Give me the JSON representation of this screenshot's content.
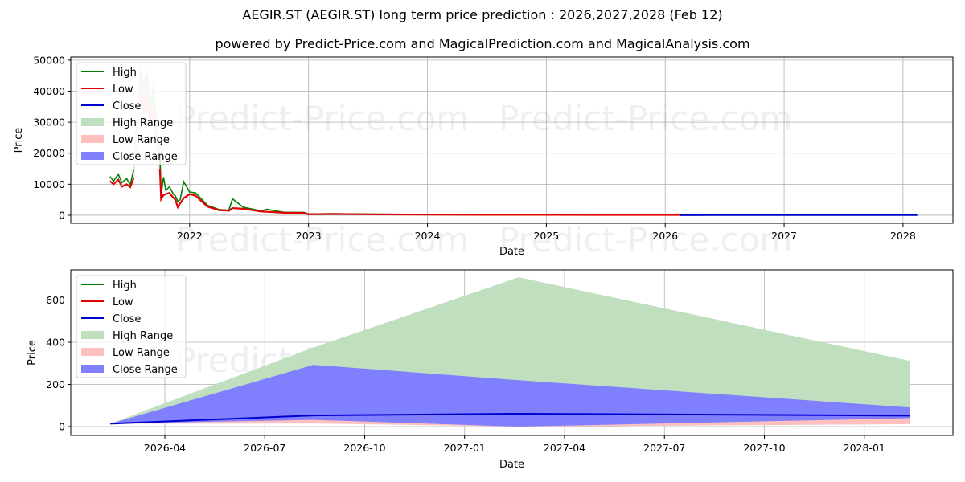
{
  "title": "AEGIR.ST (AEGIR.ST) long term price prediction : 2026,2027,2028 (Feb 12)",
  "subtitle": "powered by Predict-Price.com and MagicalPrediction.com and MagicalAnalysis.com",
  "watermark": "Predict-Price.com",
  "colors": {
    "high": "#008000",
    "low": "#e00000",
    "close": "#0000cc",
    "high_range": "#bfdfbf",
    "low_range": "#ffbfbf",
    "close_range": "#8080ff",
    "grid": "#b0b0b0"
  },
  "legend": [
    "High",
    "Low",
    "Close",
    "High Range",
    "Low Range",
    "Close Range"
  ],
  "chart_data": [
    {
      "type": "line",
      "title": "Historical and predicted price (long term)",
      "xlabel": "Date",
      "ylabel": "Price",
      "ylim": [
        -2600,
        51000
      ],
      "yticks": [
        0,
        10000,
        20000,
        30000,
        40000,
        50000
      ],
      "xticks": [
        "2022",
        "2023",
        "2024",
        "2025",
        "2026",
        "2027",
        "2028"
      ],
      "xlim": [
        2021.0,
        2028.42
      ],
      "grid": true,
      "legend_position": "upper left",
      "series": [
        {
          "name": "High",
          "x": [
            2021.33,
            2021.36,
            2021.4,
            2021.43,
            2021.47,
            2021.5,
            2021.53,
            2021.56,
            2021.58,
            2021.61,
            2021.64,
            2021.67,
            2021.7,
            2021.72,
            2021.75,
            2021.76,
            2021.78,
            2021.8,
            2021.83,
            2021.86,
            2021.88,
            2021.9,
            2021.92,
            2021.95,
            2022.0,
            2022.05,
            2022.1,
            2022.15,
            2022.25,
            2022.3,
            2022.33,
            2022.36,
            2022.45,
            2022.6,
            2022.65,
            2022.8,
            2022.96,
            2023.0,
            2023.2,
            2023.5,
            2024.0,
            2024.5,
            2025.0,
            2025.5,
            2026.12
          ],
          "values": [
            12500,
            11000,
            13200,
            10500,
            11800,
            9800,
            14800,
            36000,
            49000,
            43000,
            47000,
            38000,
            44000,
            33000,
            20000,
            6500,
            12300,
            8000,
            9200,
            7000,
            6200,
            4500,
            5000,
            10800,
            7500,
            7200,
            5200,
            3200,
            1800,
            1700,
            1600,
            5300,
            2600,
            1400,
            1900,
            900,
            900,
            400,
            500,
            350,
            250,
            200,
            180,
            160,
            150
          ]
        },
        {
          "name": "Low",
          "x": [
            2021.33,
            2021.36,
            2021.4,
            2021.43,
            2021.47,
            2021.5,
            2021.53,
            2021.56,
            2021.58,
            2021.61,
            2021.64,
            2021.67,
            2021.7,
            2021.72,
            2021.75,
            2021.76,
            2021.78,
            2021.8,
            2021.83,
            2021.86,
            2021.88,
            2021.9,
            2021.92,
            2021.95,
            2022.0,
            2022.05,
            2022.1,
            2022.15,
            2022.25,
            2022.3,
            2022.33,
            2022.36,
            2022.45,
            2022.6,
            2022.65,
            2022.8,
            2022.96,
            2023.0,
            2023.2,
            2023.5,
            2024.0,
            2024.5,
            2025.0,
            2025.5,
            2026.12
          ],
          "values": [
            11000,
            10000,
            11500,
            9200,
            10000,
            9000,
            12000,
            30000,
            43000,
            38000,
            41000,
            33000,
            35000,
            27000,
            15000,
            5200,
            6500,
            6800,
            7200,
            5800,
            5000,
            2600,
            3800,
            5500,
            6800,
            6300,
            4500,
            2800,
            1600,
            1550,
            1450,
            2300,
            2100,
            1200,
            1100,
            800,
            750,
            300,
            400,
            300,
            200,
            150,
            130,
            110,
            100
          ]
        },
        {
          "name": "Close (prediction)",
          "x": [
            2026.12,
            2026.6,
            2027.13,
            2027.6,
            2028.12
          ],
          "values": [
            14,
            53,
            61,
            57,
            52
          ]
        }
      ]
    },
    {
      "type": "area",
      "title": "Price prediction detail 2026-2028",
      "xlabel": "Date",
      "ylabel": "Price",
      "ylim": [
        -40,
        720
      ],
      "yticks": [
        0,
        200,
        400,
        600
      ],
      "xticks": [
        "2026-04",
        "2026-07",
        "2026-10",
        "2027-01",
        "2027-04",
        "2027-07",
        "2027-10",
        "2028-01"
      ],
      "grid": true,
      "legend_position": "upper left",
      "x": [
        "2026-02-12",
        "2026-08-15",
        "2027-02-20",
        "2028-02-12"
      ],
      "series": [
        {
          "name": "High Range",
          "lower": [
            14,
            40,
            0,
            12
          ],
          "upper": [
            14,
            375,
            708,
            312
          ]
        },
        {
          "name": "Close Range",
          "lower": [
            14,
            32,
            0,
            40
          ],
          "upper": [
            14,
            293,
            220,
            91
          ]
        },
        {
          "name": "Low Range",
          "lower": [
            14,
            15,
            0,
            12
          ],
          "upper": [
            14,
            42,
            5,
            46
          ]
        },
        {
          "name": "Close",
          "values": [
            14,
            53,
            61,
            52
          ]
        },
        {
          "name": "High",
          "values": [
            14,
            53,
            61,
            52
          ]
        },
        {
          "name": "Low",
          "values": [
            14,
            53,
            61,
            52
          ]
        }
      ]
    }
  ]
}
